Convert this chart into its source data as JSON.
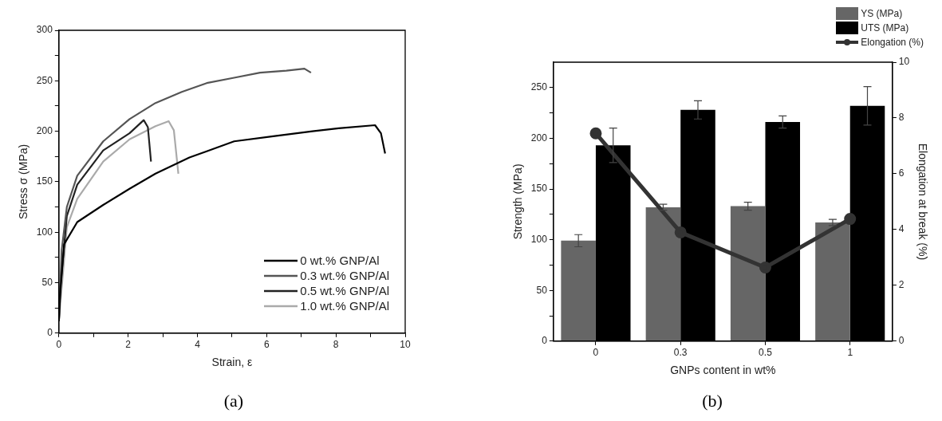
{
  "chart_data": [
    {
      "type": "line",
      "xlabel": "Strain, ε",
      "ylabel": "Stress σ (MPa)",
      "xlim": [
        0,
        10
      ],
      "ylim": [
        0,
        300
      ],
      "xticks": [
        0,
        {
          "value": 1,
          "label": null
        },
        2,
        {
          "value": 3,
          "label": null
        },
        4,
        {
          "value": 5,
          "label": null
        },
        6,
        {
          "value": 7,
          "label": null
        },
        8,
        {
          "value": 9,
          "label": null
        },
        10
      ],
      "yticks": [
        0,
        {
          "value": 25,
          "label": null
        },
        50,
        {
          "value": 75,
          "label": null
        },
        100,
        {
          "value": 125,
          "label": null
        },
        150,
        {
          "value": 175,
          "label": null
        },
        200,
        {
          "value": 225,
          "label": null
        },
        250,
        {
          "value": 275,
          "label": null
        },
        300
      ],
      "grid": false,
      "legend": "bottom right",
      "line_style": "solid",
      "annotations": [
        "(a)"
      ],
      "series": [
        {
          "name": "0 wt.% GNP/Al",
          "color": "#000000",
          "x": [
            0,
            0.04,
            0.15,
            0.53,
            1.28,
            2.04,
            2.79,
            3.77,
            5.06,
            6.19,
            7.32,
            8.08,
            9.13,
            9.3,
            9.42
          ],
          "values": [
            12,
            40,
            88,
            110,
            127,
            143,
            158,
            174,
            190,
            195,
            200,
            203,
            206,
            198,
            178
          ]
        },
        {
          "name": "0.3 wt.% GNP/Al",
          "color": "#555555",
          "x": [
            0,
            0.04,
            0.08,
            0.23,
            0.53,
            1.28,
            2.04,
            2.79,
            3.55,
            4.3,
            5.06,
            5.81,
            6.57,
            7.09,
            7.28
          ],
          "values": [
            12,
            45,
            82,
            125,
            156,
            190,
            212,
            228,
            239,
            248,
            253,
            258,
            260,
            262,
            258
          ]
        },
        {
          "name": "0.5 wt.% GNP/Al",
          "color": "#222222",
          "x": [
            0,
            0.04,
            0.23,
            0.53,
            1.28,
            2.04,
            2.45,
            2.57,
            2.66
          ],
          "values": [
            12,
            45,
            116,
            147,
            181,
            198,
            211,
            204,
            170
          ]
        },
        {
          "name": "1.0 wt.% GNP/Al",
          "color": "#aaaaaa",
          "x": [
            0,
            0.23,
            0.53,
            1.28,
            2.04,
            2.79,
            3.17,
            3.32,
            3.45
          ],
          "values": [
            12,
            105,
            133,
            170,
            192,
            205,
            210,
            201,
            158
          ]
        }
      ]
    },
    {
      "type": "bar",
      "xlabel": "GNPs content in wt%",
      "ylabel": "Strength (MPa)",
      "y2label": "Elongation at break (%)",
      "categories": [
        "0",
        "0.3",
        "0.5",
        "1"
      ],
      "ylim": [
        0,
        275
      ],
      "yticks": [
        0,
        {
          "value": 25,
          "label": null
        },
        50,
        {
          "value": 75,
          "label": null
        },
        100,
        {
          "value": 125,
          "label": null
        },
        150,
        {
          "value": 175,
          "label": null
        },
        200,
        {
          "value": 225,
          "label": null
        },
        250
      ],
      "y2lim": [
        0,
        10
      ],
      "y2ticks": [
        0,
        2,
        4,
        6,
        8,
        10
      ],
      "grid": false,
      "legend": "top right",
      "marker": "circle",
      "annotations": [
        "(b)"
      ],
      "series": [
        {
          "name": "YS (MPa)",
          "color": "#666666",
          "values": [
            99,
            132,
            133,
            117
          ],
          "errors": [
            6,
            3,
            4,
            3
          ]
        },
        {
          "name": "UTS (MPa)",
          "color": "#000000",
          "values": [
            193,
            228,
            216,
            232
          ],
          "errors": [
            17,
            9,
            6,
            19
          ]
        },
        {
          "name": "Elongation (%)",
          "type": "line",
          "axis": "y2",
          "color": "#333333",
          "values": [
            7.45,
            3.9,
            2.64,
            4.38
          ]
        }
      ]
    }
  ]
}
